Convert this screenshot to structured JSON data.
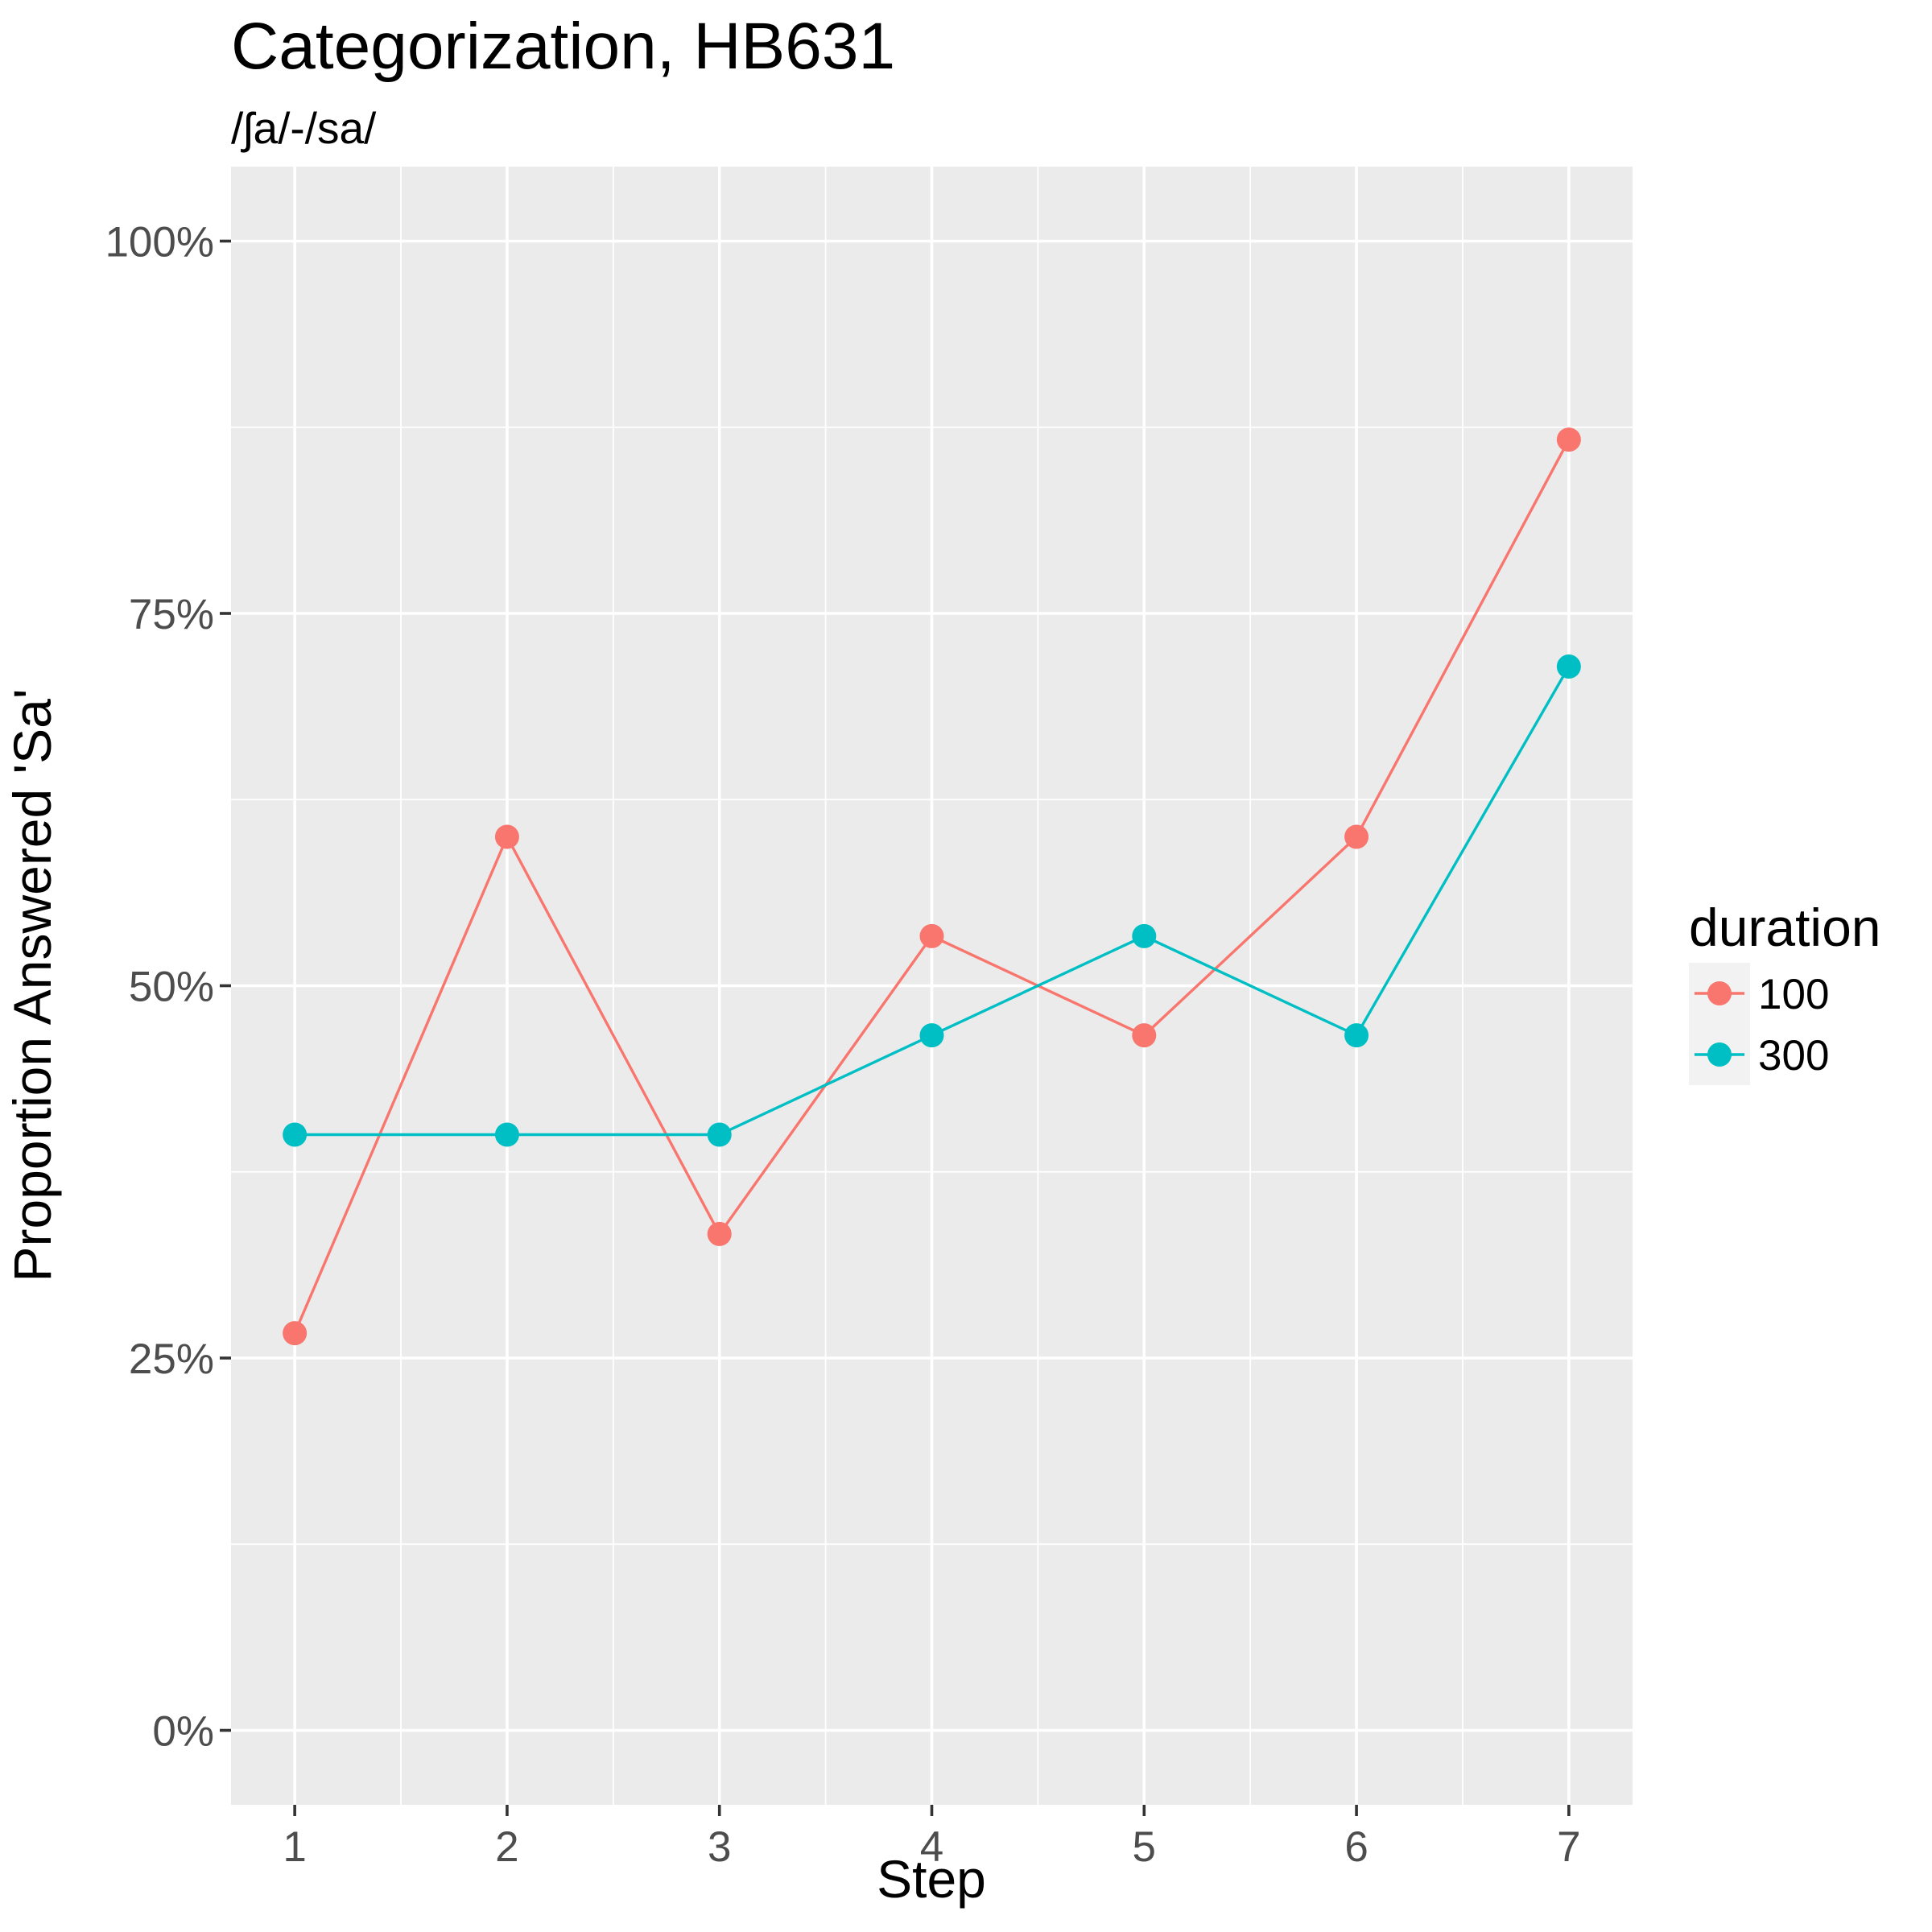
{
  "chart_data": {
    "type": "line",
    "title": "Categorization, HB631",
    "subtitle": "/ʃa/-/sa/",
    "xlabel": "Step",
    "ylabel": "Proportion Answered 'Sa'",
    "x": [
      1,
      2,
      3,
      4,
      5,
      6,
      7
    ],
    "x_tick_labels": [
      "1",
      "2",
      "3",
      "4",
      "5",
      "6",
      "7"
    ],
    "xlim": [
      0.7,
      7.3
    ],
    "ylim": [
      -0.05,
      1.05
    ],
    "y_ticks": [
      0,
      0.25,
      0.5,
      0.75,
      1
    ],
    "y_tick_labels": [
      "0%",
      "25%",
      "50%",
      "75%",
      "100%"
    ],
    "grid": true,
    "legend": {
      "title": "duration",
      "position": "right"
    },
    "series": [
      {
        "name": "100",
        "color": "#F8766D",
        "values": [
          0.2667,
          0.6,
          0.3333,
          0.5333,
          0.4667,
          0.6,
          0.8667
        ]
      },
      {
        "name": "300",
        "color": "#00BFC4",
        "values": [
          0.4,
          0.4,
          0.4,
          0.4667,
          0.5333,
          0.4667,
          0.7143
        ]
      }
    ]
  }
}
